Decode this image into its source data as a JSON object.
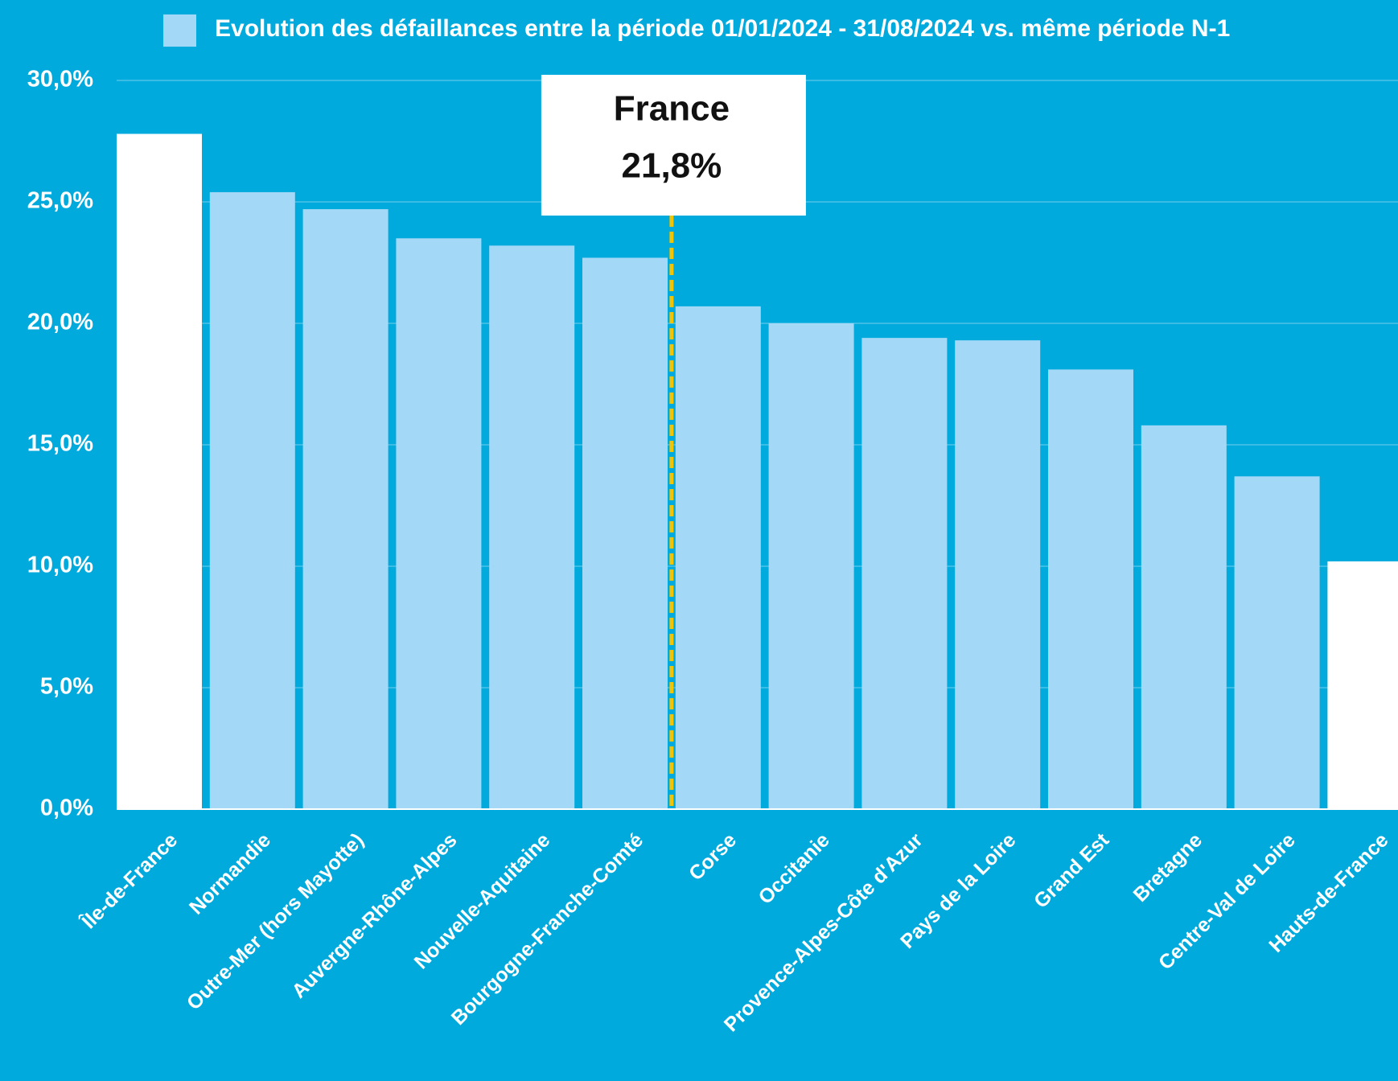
{
  "chart_data": {
    "type": "bar",
    "legend": "Evolution des défaillances entre la période 01/01/2024 - 31/08/2024 vs. même période N-1",
    "categories": [
      "Île-de-France",
      "Normandie",
      "Outre-Mer (hors Mayotte)",
      "Auvergne-Rhône-Alpes",
      "Nouvelle-Aquitaine",
      "Bourgogne-Franche-Comté",
      "Corse",
      "Occitanie",
      "Provence-Alpes-Côte d'Azur",
      "Pays de la Loire",
      "Grand Est",
      "Bretagne",
      "Centre-Val de Loire",
      "Hauts-de-France"
    ],
    "values": [
      27.8,
      25.4,
      24.7,
      23.5,
      23.2,
      22.7,
      20.7,
      20.0,
      19.4,
      19.3,
      18.1,
      15.8,
      13.7,
      10.2
    ],
    "colors": [
      "#ffffff",
      "#a3d9f7",
      "#a3d9f7",
      "#a3d9f7",
      "#a3d9f7",
      "#a3d9f7",
      "#a3d9f7",
      "#a3d9f7",
      "#a3d9f7",
      "#a3d9f7",
      "#a3d9f7",
      "#a3d9f7",
      "#a3d9f7",
      "#ffffff"
    ],
    "legend_color": "#a3d9f7",
    "ylim": [
      0,
      30
    ],
    "yticks": [
      {
        "value": 0,
        "label": "0,0%"
      },
      {
        "value": 5,
        "label": "5,0%"
      },
      {
        "value": 10,
        "label": "10,0%"
      },
      {
        "value": 15,
        "label": "15,0%"
      },
      {
        "value": 20,
        "label": "20,0%"
      },
      {
        "value": 25,
        "label": "25,0%"
      },
      {
        "value": 30,
        "label": "30,0%"
      }
    ],
    "grid": true,
    "reference": {
      "name": "France",
      "value": 21.8,
      "label": "21,8%",
      "color": "#f5c400"
    }
  }
}
